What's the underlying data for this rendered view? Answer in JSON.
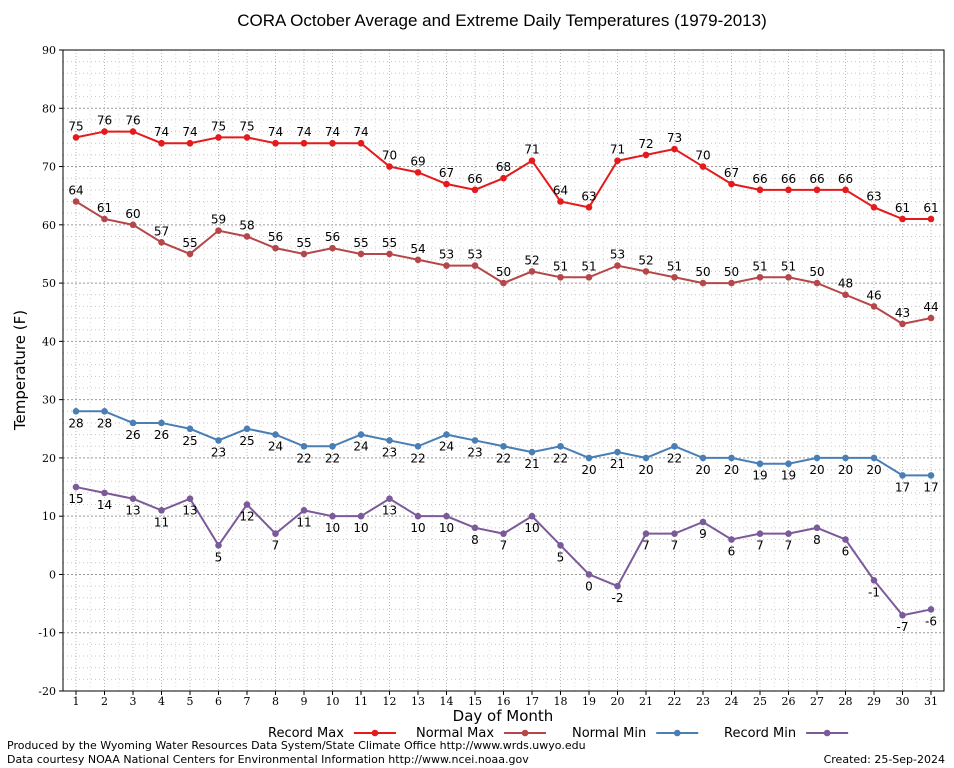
{
  "chart_data": {
    "type": "line",
    "title": "CORA October Average and Extreme Daily Temperatures (1979-2013)",
    "xlabel": "Day of Month",
    "ylabel": "Temperature (F)",
    "xlim": [
      1,
      31
    ],
    "ylim": [
      -20,
      90
    ],
    "yticks": [
      -20,
      -10,
      0,
      10,
      20,
      30,
      40,
      50,
      60,
      70,
      80,
      90
    ],
    "x": [
      1,
      2,
      3,
      4,
      5,
      6,
      7,
      8,
      9,
      10,
      11,
      12,
      13,
      14,
      15,
      16,
      17,
      18,
      19,
      20,
      21,
      22,
      23,
      24,
      25,
      26,
      27,
      28,
      29,
      30,
      31
    ],
    "grid": true,
    "legend_position": "bottom",
    "series": [
      {
        "name": "Record Max",
        "color": "#e41a1c",
        "label_position": "above",
        "values": [
          75,
          76,
          76,
          74,
          74,
          75,
          75,
          74,
          74,
          74,
          74,
          70,
          69,
          67,
          66,
          68,
          71,
          64,
          63,
          71,
          72,
          73,
          70,
          67,
          66,
          66,
          66,
          66,
          63,
          61,
          61
        ]
      },
      {
        "name": "Normal Max",
        "color": "#b5474a",
        "label_position": "above",
        "values": [
          64,
          61,
          60,
          57,
          55,
          59,
          58,
          56,
          55,
          56,
          55,
          55,
          54,
          53,
          53,
          50,
          52,
          51,
          51,
          53,
          52,
          51,
          50,
          50,
          51,
          51,
          50,
          48,
          46,
          43,
          44
        ]
      },
      {
        "name": "Normal Min",
        "color": "#4a7fb5",
        "label_position": "below",
        "values": [
          28,
          28,
          26,
          26,
          25,
          23,
          25,
          24,
          22,
          22,
          24,
          23,
          22,
          24,
          23,
          22,
          21,
          22,
          20,
          21,
          20,
          22,
          20,
          20,
          19,
          19,
          20,
          20,
          20,
          17,
          17
        ]
      },
      {
        "name": "Record Min",
        "color": "#7b5a9a",
        "label_position": "below",
        "values": [
          15,
          14,
          13,
          11,
          13,
          5,
          12,
          7,
          11,
          10,
          10,
          13,
          10,
          10,
          8,
          7,
          10,
          5,
          0,
          -2,
          7,
          7,
          9,
          6,
          7,
          7,
          8,
          6,
          -1,
          -7,
          -6
        ]
      }
    ]
  },
  "footer": {
    "line1": "Produced by the Wyoming Water Resources Data System/State Climate Office http://www.wrds.uwyo.edu",
    "line2": "Data courtesy NOAA National Centers for Environmental Information http://www.ncei.noaa.gov",
    "created": "Created:  25-Sep-2024"
  }
}
